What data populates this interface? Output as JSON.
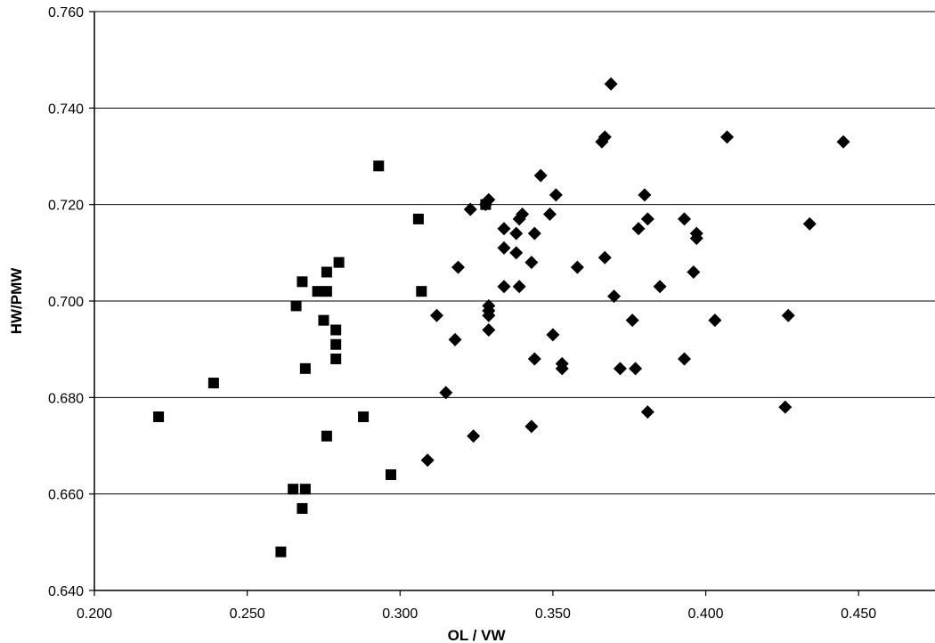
{
  "chart_data": {
    "type": "scatter",
    "title": "",
    "xlabel": "OL / VW",
    "ylabel": "HW/PMW",
    "xlim": [
      0.2,
      0.475
    ],
    "ylim": [
      0.64,
      0.76
    ],
    "x_ticks": [
      0.2,
      0.25,
      0.3,
      0.35,
      0.4,
      0.45
    ],
    "x_tick_labels": [
      "0.200",
      "0.250",
      "0.300",
      "0.350",
      "0.400",
      "0.450"
    ],
    "y_ticks": [
      0.64,
      0.66,
      0.68,
      0.7,
      0.72,
      0.74,
      0.76
    ],
    "y_tick_labels": [
      "0.640",
      "0.660",
      "0.680",
      "0.700",
      "0.720",
      "0.740",
      "0.760"
    ],
    "grid": "horizontal",
    "legend": "none",
    "series": [
      {
        "marker": "square",
        "color": "#000000",
        "points": [
          [
            0.221,
            0.676
          ],
          [
            0.239,
            0.683
          ],
          [
            0.261,
            0.648
          ],
          [
            0.265,
            0.661
          ],
          [
            0.266,
            0.699
          ],
          [
            0.268,
            0.657
          ],
          [
            0.268,
            0.704
          ],
          [
            0.269,
            0.661
          ],
          [
            0.269,
            0.686
          ],
          [
            0.273,
            0.702
          ],
          [
            0.275,
            0.696
          ],
          [
            0.276,
            0.672
          ],
          [
            0.276,
            0.702
          ],
          [
            0.276,
            0.706
          ],
          [
            0.279,
            0.688
          ],
          [
            0.279,
            0.691
          ],
          [
            0.279,
            0.694
          ],
          [
            0.28,
            0.708
          ],
          [
            0.288,
            0.676
          ],
          [
            0.293,
            0.728
          ],
          [
            0.297,
            0.664
          ],
          [
            0.306,
            0.717
          ],
          [
            0.307,
            0.702
          ],
          [
            0.328,
            0.72
          ]
        ]
      },
      {
        "marker": "diamond",
        "color": "#000000",
        "points": [
          [
            0.309,
            0.667
          ],
          [
            0.312,
            0.697
          ],
          [
            0.315,
            0.681
          ],
          [
            0.318,
            0.692
          ],
          [
            0.319,
            0.707
          ],
          [
            0.323,
            0.719
          ],
          [
            0.324,
            0.672
          ],
          [
            0.328,
            0.72
          ],
          [
            0.329,
            0.721
          ],
          [
            0.329,
            0.694
          ],
          [
            0.329,
            0.697
          ],
          [
            0.329,
            0.698
          ],
          [
            0.329,
            0.699
          ],
          [
            0.334,
            0.703
          ],
          [
            0.334,
            0.711
          ],
          [
            0.334,
            0.715
          ],
          [
            0.338,
            0.71
          ],
          [
            0.338,
            0.714
          ],
          [
            0.339,
            0.717
          ],
          [
            0.339,
            0.703
          ],
          [
            0.34,
            0.718
          ],
          [
            0.343,
            0.674
          ],
          [
            0.343,
            0.708
          ],
          [
            0.344,
            0.688
          ],
          [
            0.344,
            0.714
          ],
          [
            0.346,
            0.726
          ],
          [
            0.349,
            0.718
          ],
          [
            0.35,
            0.693
          ],
          [
            0.351,
            0.722
          ],
          [
            0.353,
            0.687
          ],
          [
            0.353,
            0.686
          ],
          [
            0.358,
            0.707
          ],
          [
            0.366,
            0.733
          ],
          [
            0.367,
            0.734
          ],
          [
            0.367,
            0.709
          ],
          [
            0.369,
            0.745
          ],
          [
            0.37,
            0.701
          ],
          [
            0.372,
            0.686
          ],
          [
            0.376,
            0.696
          ],
          [
            0.377,
            0.686
          ],
          [
            0.378,
            0.715
          ],
          [
            0.38,
            0.722
          ],
          [
            0.381,
            0.717
          ],
          [
            0.381,
            0.677
          ],
          [
            0.385,
            0.703
          ],
          [
            0.393,
            0.717
          ],
          [
            0.393,
            0.688
          ],
          [
            0.396,
            0.706
          ],
          [
            0.397,
            0.714
          ],
          [
            0.397,
            0.713
          ],
          [
            0.403,
            0.696
          ],
          [
            0.407,
            0.734
          ],
          [
            0.426,
            0.678
          ],
          [
            0.427,
            0.697
          ],
          [
            0.434,
            0.716
          ],
          [
            0.445,
            0.733
          ]
        ]
      }
    ]
  }
}
